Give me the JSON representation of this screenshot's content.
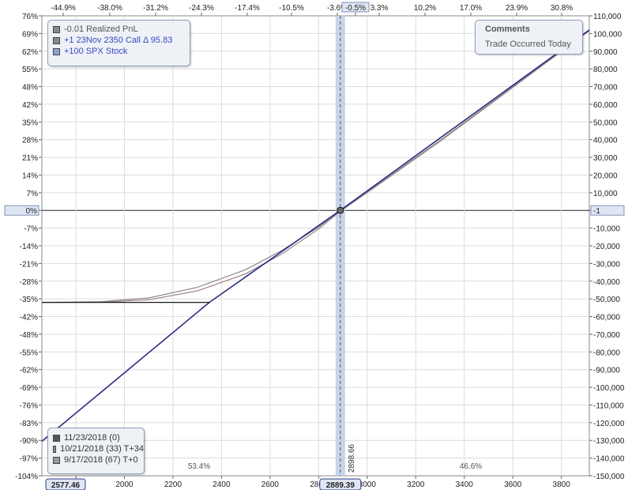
{
  "chart_data": {
    "type": "line",
    "x_axis": {
      "ticks": [
        1800,
        2000,
        2200,
        2400,
        2600,
        2800,
        3000,
        3200,
        3400,
        3600,
        3800
      ],
      "range": [
        1660,
        3915
      ]
    },
    "left_axis": {
      "ticks": [
        "76%",
        "69%",
        "62%",
        "55%",
        "48%",
        "42%",
        "35%",
        "28%",
        "21%",
        "14%",
        "7%",
        "0%",
        "-7%",
        "-14%",
        "-21%",
        "-28%",
        "-35%",
        "-42%",
        "-48%",
        "-55%",
        "-62%",
        "-69%",
        "-76%",
        "-83%",
        "-90%",
        "-97%",
        "-104%"
      ],
      "highlight": "0%"
    },
    "right_axis": {
      "ticks": [
        "110,000",
        "100,000",
        "90,000",
        "80,000",
        "70,000",
        "60,000",
        "50,000",
        "40,000",
        "30,000",
        "20,000",
        "10,000",
        "0",
        "-10,000",
        "-20,000",
        "-30,000",
        "-40,000",
        "-50,000",
        "-60,000",
        "-70,000",
        "-80,000",
        "-90,000",
        "-100,000",
        "-110,000",
        "-120,000",
        "-130,000",
        "-140,000",
        "-150,000"
      ],
      "range": [
        -150000,
        110000
      ],
      "highlight": "-1"
    },
    "top_axis": {
      "ticks": [
        "-44.9%",
        "-38.0%",
        "-31.2%",
        "-24.3%",
        "-17.4%",
        "-10.5%",
        "-3.6%",
        "-0.5%",
        "3.3%",
        "10.2%",
        "17.0%",
        "23.9%",
        "30.8%"
      ],
      "highlight": "-0.5%"
    },
    "current_price": 2889.39,
    "left_marker": 2577.46,
    "vertical_line_label": "2898.66",
    "pct_left": "53.4%",
    "pct_right": "46.6%",
    "series": [
      {
        "name": "11/23/2018 (0)",
        "color": "#2b2b86",
        "points": [
          [
            1660,
            -130500
          ],
          [
            2350,
            -52000
          ],
          [
            2889.39,
            0
          ],
          [
            3915,
            102000
          ]
        ]
      },
      {
        "name": "10/21/2018 (33) T+34",
        "color": "#a08080",
        "points": [
          [
            1660,
            -52000
          ],
          [
            1900,
            -51900
          ],
          [
            2100,
            -50500
          ],
          [
            2300,
            -45500
          ],
          [
            2500,
            -35800
          ],
          [
            2650,
            -24500
          ],
          [
            2800,
            -10500
          ],
          [
            2889.39,
            -500
          ],
          [
            3000,
            10000
          ],
          [
            3300,
            39000
          ],
          [
            3915,
            101500
          ]
        ]
      },
      {
        "name": "9/17/2018 (67) T+0",
        "color": "#8a8a8a",
        "points": [
          [
            1660,
            -52000
          ],
          [
            1900,
            -51600
          ],
          [
            2100,
            -49500
          ],
          [
            2300,
            -43500
          ],
          [
            2500,
            -33500
          ],
          [
            2650,
            -22500
          ],
          [
            2800,
            -9500
          ],
          [
            2889.39,
            0
          ],
          [
            3000,
            10500
          ],
          [
            3300,
            39500
          ],
          [
            3915,
            102000
          ]
        ]
      }
    ]
  },
  "legend_top": [
    {
      "label": "-0.01 Realized PnL",
      "color": "#8a8a8a",
      "text_color": "#555555"
    },
    {
      "label": "+1 23Nov 2350 Call Δ    95.83",
      "color": "#8a8a8a",
      "text_color": "#3a49c0"
    },
    {
      "label": "+100 SPX Stock",
      "color": "#8fa3d0",
      "text_color": "#3a49c0"
    }
  ],
  "legend_bottom": [
    {
      "label": "11/23/2018 (0)",
      "color": "#555555"
    },
    {
      "label": "10/21/2018 (33) T+34",
      "color": "#9a8a8a"
    },
    {
      "label": "9/17/2018 (67) T+0",
      "color": "#9a9a9a"
    }
  ],
  "comments": {
    "title": "Comments",
    "text": "Trade Occurred Today"
  }
}
